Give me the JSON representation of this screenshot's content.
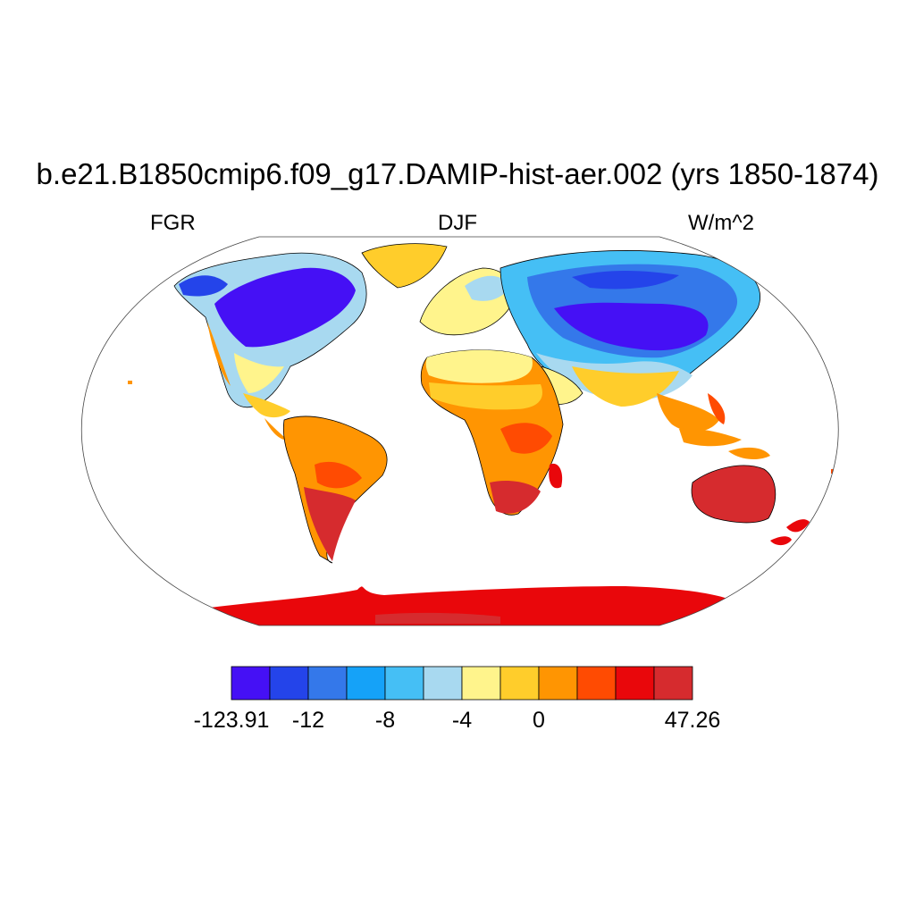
{
  "title": "b.e21.B1850cmip6.f09_g17.DAMIP-hist-aer.002 (yrs 1850-1874)",
  "left_label": "FGR",
  "center_label": "DJF",
  "right_label": "W/m^2",
  "colorbar": {
    "colors": [
      "#4510f5",
      "#2444ea",
      "#3478ea",
      "#15a2f8",
      "#45bff5",
      "#a8d9f0",
      "#fff48c",
      "#ffcd2b",
      "#ff9502",
      "#ff4b02",
      "#e9070b",
      "#d62b2e"
    ],
    "labels": [
      {
        "text": "-123.91",
        "boundary": 0
      },
      {
        "text": "-12",
        "boundary": 2
      },
      {
        "text": "-8",
        "boundary": 4
      },
      {
        "text": "-4",
        "boundary": 6
      },
      {
        "text": "0",
        "boundary": 8
      },
      {
        "text": "47.26",
        "boundary": 12
      }
    ]
  }
}
